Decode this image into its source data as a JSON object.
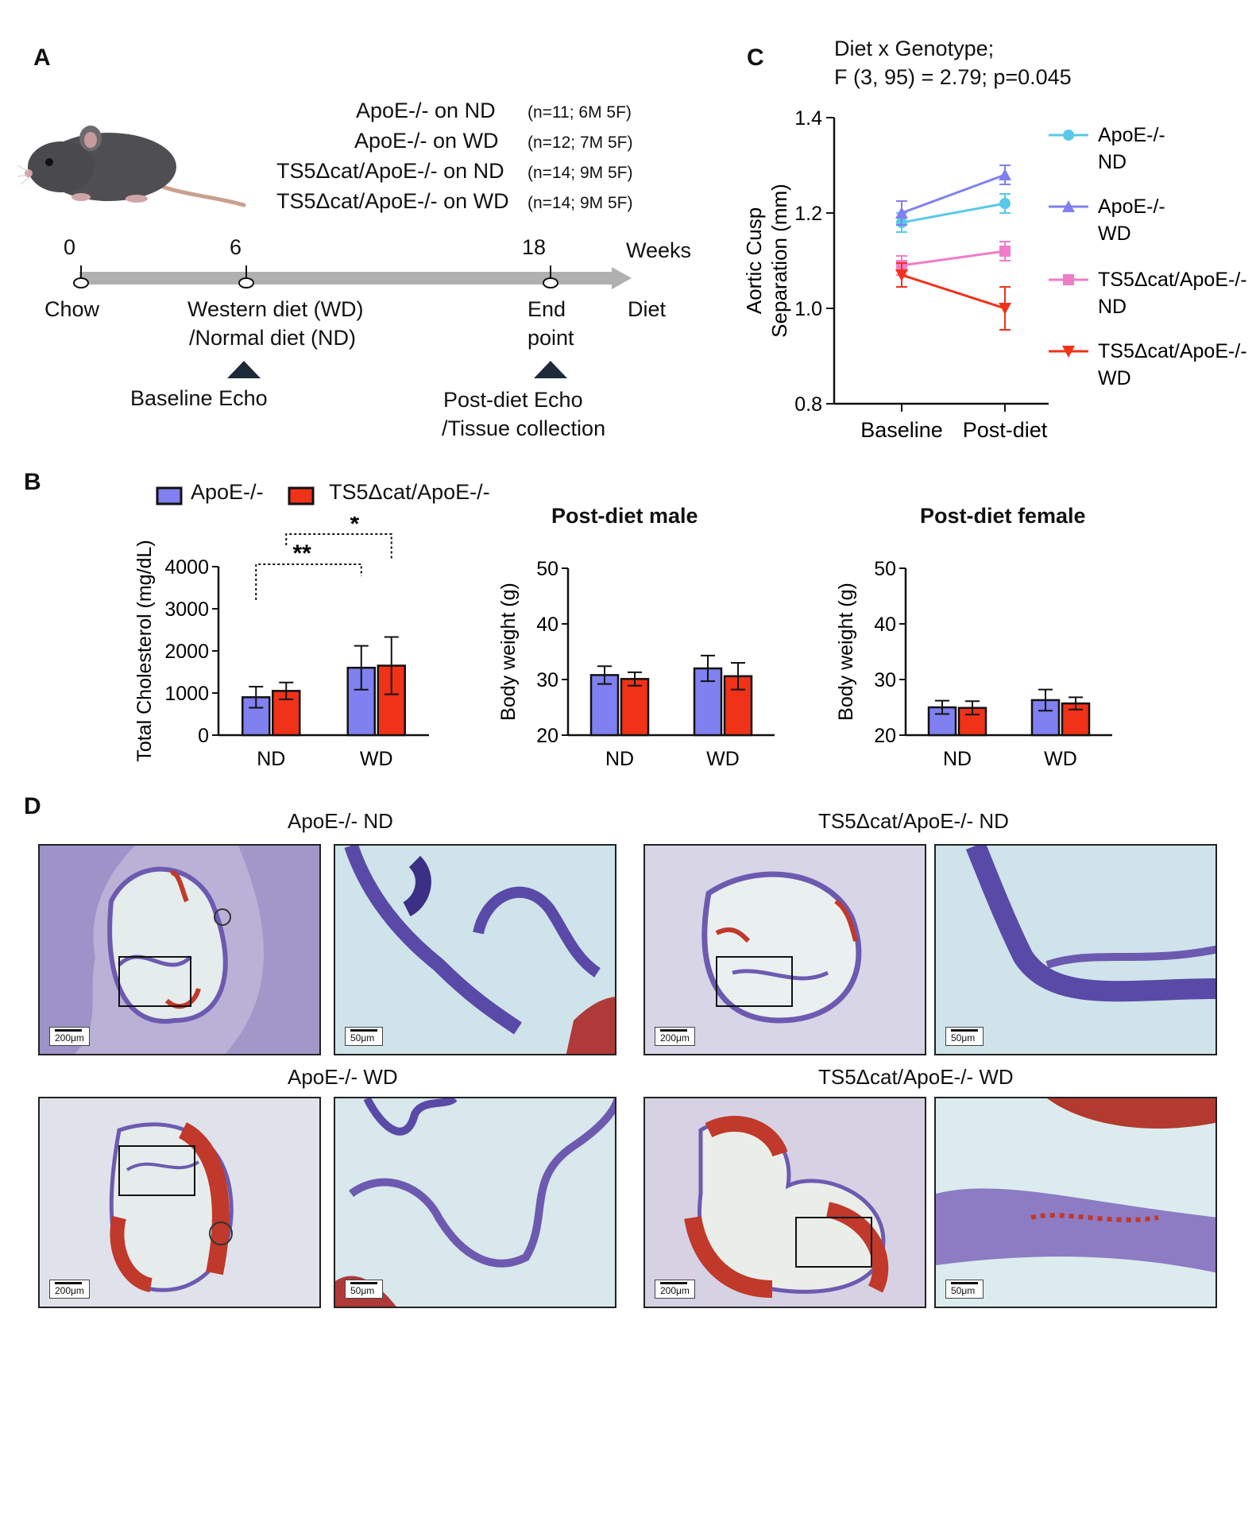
{
  "panels": {
    "a": "A",
    "b": "B",
    "c": "C",
    "d": "D"
  },
  "panel_a": {
    "groups": [
      {
        "label": "ApoE-/- on ND",
        "n": "(n=11; 6M 5F)"
      },
      {
        "label": "ApoE-/- on WD",
        "n": "(n=12; 7M 5F)"
      },
      {
        "label": "TS5Δcat/ApoE-/- on ND",
        "n": "(n=14; 9M 5F)"
      },
      {
        "label": "TS5Δcat/ApoE-/- on WD",
        "n": "(n=14; 9M 5F)"
      }
    ],
    "timeline": {
      "ticks": [
        "0",
        "6",
        "18"
      ],
      "weeks_label": "Weeks",
      "diet_label": "Diet",
      "chow": "Chow",
      "western_diet": "Western diet (WD)",
      "normal_diet": "/Normal diet (ND)",
      "end_point_1": "End",
      "end_point_2": "point",
      "baseline_echo": "Baseline Echo",
      "post_echo_1": "Post-diet Echo",
      "post_echo_2": "/Tissue collection"
    }
  },
  "panel_b": {
    "legend": [
      "ApoE-/-",
      "TS5Δcat/ApoE-/-"
    ],
    "colors": {
      "apoe": "#8080f0",
      "ts5": "#f03218"
    },
    "stars": [
      "**",
      "*"
    ],
    "subtitles": {
      "male": "Post-diet male",
      "female": "Post-diet female"
    }
  },
  "panel_c": {
    "stat_line1": "Diet x Genotype;",
    "stat_line2": "F (3, 95) = 2.79; p=0.045"
  },
  "panel_d": {
    "titles": [
      "ApoE-/- ND",
      "TS5Δcat/ApoE-/- ND",
      "ApoE-/- WD",
      "TS5Δcat/ApoE-/- WD"
    ],
    "scale_low": "200μm",
    "scale_high": "50μm"
  },
  "chart_data": [
    {
      "type": "bar",
      "panel": "B-cholesterol",
      "categories": [
        "ND",
        "WD"
      ],
      "ylabel": "Total Cholesterol (mg/dL)",
      "ylim": [
        0,
        4000
      ],
      "yticks": [
        0,
        1000,
        2000,
        3000,
        4000
      ],
      "series": [
        {
          "name": "ApoE-/-",
          "values": [
            900,
            1600
          ],
          "errors": [
            250,
            520
          ]
        },
        {
          "name": "TS5Δcat/ApoE-/-",
          "values": [
            1050,
            1650
          ],
          "errors": [
            200,
            680
          ]
        }
      ]
    },
    {
      "type": "bar",
      "panel": "B-male",
      "title": "Post-diet male",
      "categories": [
        "ND",
        "WD"
      ],
      "ylabel": "Body weight (g)",
      "ylim": [
        20,
        50
      ],
      "yticks": [
        20,
        30,
        40,
        50
      ],
      "series": [
        {
          "name": "ApoE-/-",
          "values": [
            30.8,
            32.0
          ],
          "errors": [
            1.6,
            2.3
          ]
        },
        {
          "name": "TS5Δcat/ApoE-/-",
          "values": [
            30.1,
            30.6
          ],
          "errors": [
            1.2,
            2.4
          ]
        }
      ]
    },
    {
      "type": "bar",
      "panel": "B-female",
      "title": "Post-diet female",
      "categories": [
        "ND",
        "WD"
      ],
      "ylabel": "Body weight (g)",
      "ylim": [
        20,
        50
      ],
      "yticks": [
        20,
        30,
        40,
        50
      ],
      "series": [
        {
          "name": "ApoE-/-",
          "values": [
            25.0,
            26.3
          ],
          "errors": [
            1.2,
            1.9
          ]
        },
        {
          "name": "TS5Δcat/ApoE-/-",
          "values": [
            24.9,
            25.7
          ],
          "errors": [
            1.2,
            1.1
          ]
        }
      ]
    },
    {
      "type": "line",
      "panel": "C",
      "categories": [
        "Baseline",
        "Post-diet"
      ],
      "ylabel": "Aortic Cusp Separation (mm)",
      "ylim": [
        0.8,
        1.4
      ],
      "yticks": [
        "0.8",
        "1.0",
        "1.2",
        "1.4"
      ],
      "series": [
        {
          "name": "ApoE-/- ND",
          "values": [
            1.18,
            1.22
          ],
          "errors": [
            0.02,
            0.02
          ],
          "color": "#5ac8e8",
          "marker": "circle"
        },
        {
          "name": "ApoE-/- WD",
          "values": [
            1.2,
            1.28
          ],
          "errors": [
            0.025,
            0.02
          ],
          "color": "#8080f0",
          "marker": "triangle-up"
        },
        {
          "name": "TS5Δcat/ApoE-/- ND",
          "values": [
            1.09,
            1.12
          ],
          "errors": [
            0.02,
            0.02
          ],
          "color": "#f07cc8",
          "marker": "square"
        },
        {
          "name": "TS5Δcat/ApoE-/- WD",
          "values": [
            1.07,
            1.0
          ],
          "errors": [
            0.025,
            0.045
          ],
          "color": "#f03218",
          "marker": "triangle-down"
        }
      ]
    }
  ]
}
